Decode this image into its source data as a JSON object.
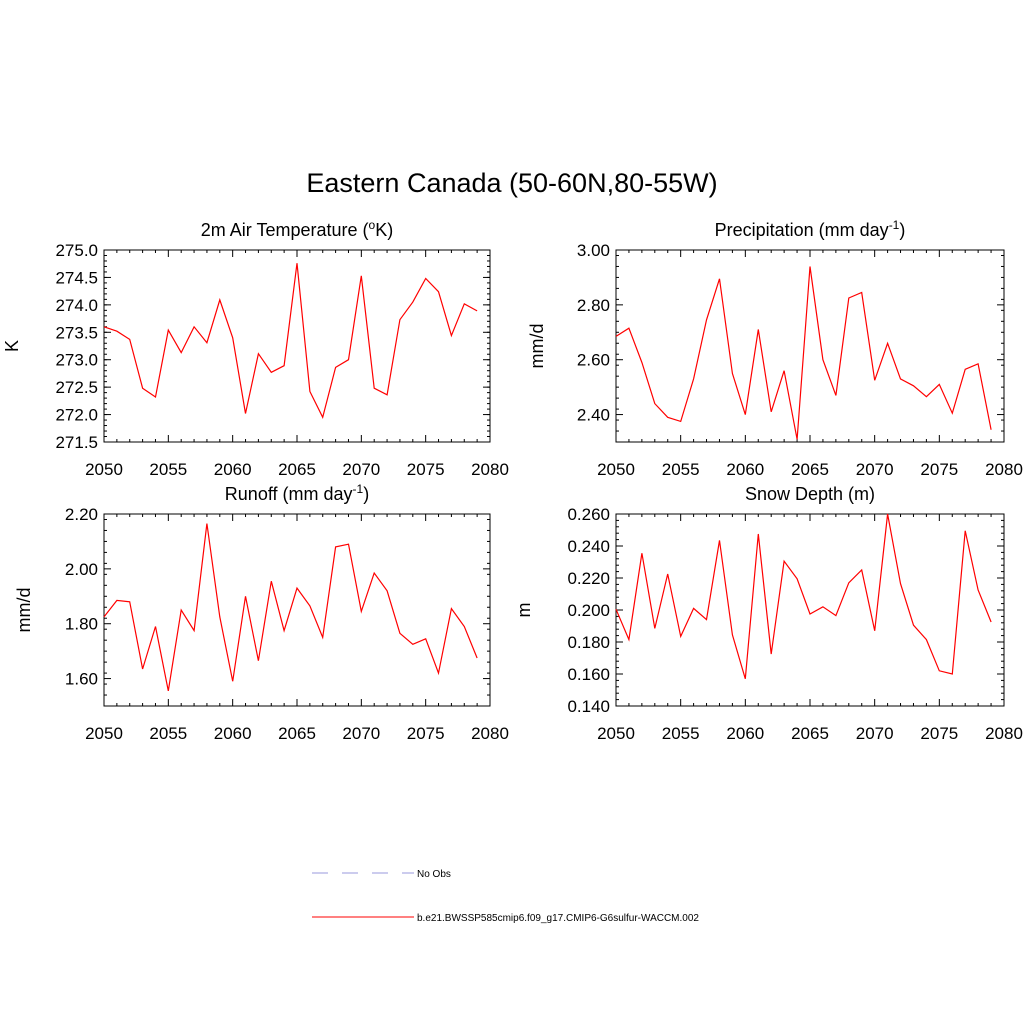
{
  "title": "Eastern Canada (50-60N,80-55W)",
  "legend": [
    {
      "label": "No Obs",
      "color": "#9999dd",
      "dash": true
    },
    {
      "label": "b.e21.BWSSP585cmip6.f09_g17.CMIP6-G6sulfur-WACCM.002",
      "color": "#ff0000",
      "dash": false
    }
  ],
  "chart_data": [
    {
      "type": "line",
      "title": "2m Air Temperature (",
      "title_sup": "o",
      "title_suffix": "K)",
      "ylabel": "K",
      "xlim": [
        2050,
        2080
      ],
      "ylim": [
        271.5,
        275.0
      ],
      "xticks": [
        2050,
        2055,
        2060,
        2065,
        2070,
        2075,
        2080
      ],
      "yticks": [
        271.5,
        272.0,
        272.5,
        273.0,
        273.5,
        274.0,
        274.5,
        275.0
      ],
      "ytick_decimals": 1,
      "series": [
        {
          "color": "#ff0000",
          "x": [
            2050,
            2051,
            2052,
            2053,
            2054,
            2055,
            2056,
            2057,
            2058,
            2059,
            2060,
            2061,
            2062,
            2063,
            2064,
            2065,
            2066,
            2067,
            2068,
            2069,
            2070,
            2071,
            2072,
            2073,
            2074,
            2075,
            2076,
            2077,
            2078,
            2079
          ],
          "y": [
            273.6,
            273.52,
            273.37,
            272.48,
            272.32,
            273.54,
            273.13,
            273.6,
            273.31,
            274.09,
            273.4,
            272.02,
            273.11,
            272.77,
            272.89,
            274.76,
            272.42,
            271.95,
            272.86,
            273.0,
            274.53,
            272.48,
            272.36,
            273.73,
            274.05,
            274.48,
            274.24,
            273.44,
            274.02,
            273.89
          ]
        }
      ]
    },
    {
      "type": "line",
      "title": "Precipitation (mm day",
      "title_sup": "-1",
      "title_suffix": ")",
      "ylabel": "mm/d",
      "xlim": [
        2050,
        2080
      ],
      "ylim": [
        2.3,
        3.0
      ],
      "xticks": [
        2050,
        2055,
        2060,
        2065,
        2070,
        2075,
        2080
      ],
      "yticks": [
        2.4,
        2.6,
        2.8,
        3.0
      ],
      "ytick_decimals": 2,
      "series": [
        {
          "color": "#ff0000",
          "x": [
            2050,
            2051,
            2052,
            2053,
            2054,
            2055,
            2056,
            2057,
            2058,
            2059,
            2060,
            2061,
            2062,
            2063,
            2064,
            2065,
            2066,
            2067,
            2068,
            2069,
            2070,
            2071,
            2072,
            2073,
            2074,
            2075,
            2076,
            2077,
            2078,
            2079
          ],
          "y": [
            2.685,
            2.715,
            2.59,
            2.44,
            2.39,
            2.375,
            2.53,
            2.745,
            2.895,
            2.55,
            2.4,
            2.71,
            2.41,
            2.56,
            2.31,
            2.94,
            2.6,
            2.47,
            2.825,
            2.845,
            2.525,
            2.66,
            2.53,
            2.505,
            2.465,
            2.51,
            2.405,
            2.565,
            2.585,
            2.345
          ]
        }
      ]
    },
    {
      "type": "line",
      "title": "Runoff (mm day",
      "title_sup": "-1",
      "title_suffix": ")",
      "ylabel": "mm/d",
      "xlim": [
        2050,
        2080
      ],
      "ylim": [
        1.5,
        2.2
      ],
      "xticks": [
        2050,
        2055,
        2060,
        2065,
        2070,
        2075,
        2080
      ],
      "yticks": [
        1.6,
        1.8,
        2.0,
        2.2
      ],
      "ytick_decimals": 2,
      "series": [
        {
          "color": "#ff0000",
          "x": [
            2050,
            2051,
            2052,
            2053,
            2054,
            2055,
            2056,
            2057,
            2058,
            2059,
            2060,
            2061,
            2062,
            2063,
            2064,
            2065,
            2066,
            2067,
            2068,
            2069,
            2070,
            2071,
            2072,
            2073,
            2074,
            2075,
            2076,
            2077,
            2078,
            2079
          ],
          "y": [
            1.825,
            1.885,
            1.88,
            1.635,
            1.79,
            1.555,
            1.85,
            1.775,
            2.165,
            1.825,
            1.59,
            1.9,
            1.665,
            1.955,
            1.775,
            1.93,
            1.865,
            1.75,
            2.08,
            2.09,
            1.845,
            1.985,
            1.92,
            1.765,
            1.725,
            1.745,
            1.62,
            1.855,
            1.79,
            1.675
          ]
        }
      ]
    },
    {
      "type": "line",
      "title": "Snow Depth (m)",
      "title_sup": "",
      "title_suffix": "",
      "ylabel": "m",
      "xlim": [
        2050,
        2080
      ],
      "ylim": [
        0.14,
        0.26
      ],
      "xticks": [
        2050,
        2055,
        2060,
        2065,
        2070,
        2075,
        2080
      ],
      "yticks": [
        0.14,
        0.16,
        0.18,
        0.2,
        0.22,
        0.24,
        0.26
      ],
      "ytick_decimals": 3,
      "series": [
        {
          "color": "#ff0000",
          "x": [
            2050,
            2051,
            2052,
            2053,
            2054,
            2055,
            2056,
            2057,
            2058,
            2059,
            2060,
            2061,
            2062,
            2063,
            2064,
            2065,
            2066,
            2067,
            2068,
            2069,
            2070,
            2071,
            2072,
            2073,
            2074,
            2075,
            2076,
            2077,
            2078,
            2079
          ],
          "y": [
            0.2005,
            0.1815,
            0.2355,
            0.1885,
            0.2225,
            0.1835,
            0.201,
            0.194,
            0.2435,
            0.1845,
            0.157,
            0.2475,
            0.1725,
            0.2305,
            0.2195,
            0.1975,
            0.202,
            0.1965,
            0.217,
            0.225,
            0.187,
            0.26,
            0.2165,
            0.1905,
            0.1815,
            0.162,
            0.16,
            0.2495,
            0.2125,
            0.1925
          ]
        }
      ]
    }
  ]
}
